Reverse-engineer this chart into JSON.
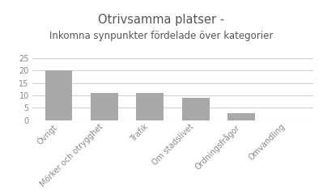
{
  "title_line1": "Otrivsamma platser -",
  "title_line2": "Inkomna synpunkter fördelade över kategorier",
  "categories": [
    "Övrigt",
    "Mörker och otrygghet",
    "Trafik",
    "Om stadslivet",
    "Ordningsfrågor",
    "Omvandling"
  ],
  "values": [
    20,
    11,
    11,
    9,
    3,
    0
  ],
  "bar_color": "#a8a8a8",
  "ylim": [
    0,
    25
  ],
  "yticks": [
    0,
    5,
    10,
    15,
    20,
    25
  ],
  "background_color": "#ffffff",
  "plot_bg_color": "#ffffff",
  "title_fontsize": 10.5,
  "subtitle_fontsize": 8.5,
  "tick_fontsize": 7,
  "grid_color": "#d0d0d0",
  "bar_edge_color": "none",
  "title_color": "#555555",
  "tick_color": "#888888"
}
